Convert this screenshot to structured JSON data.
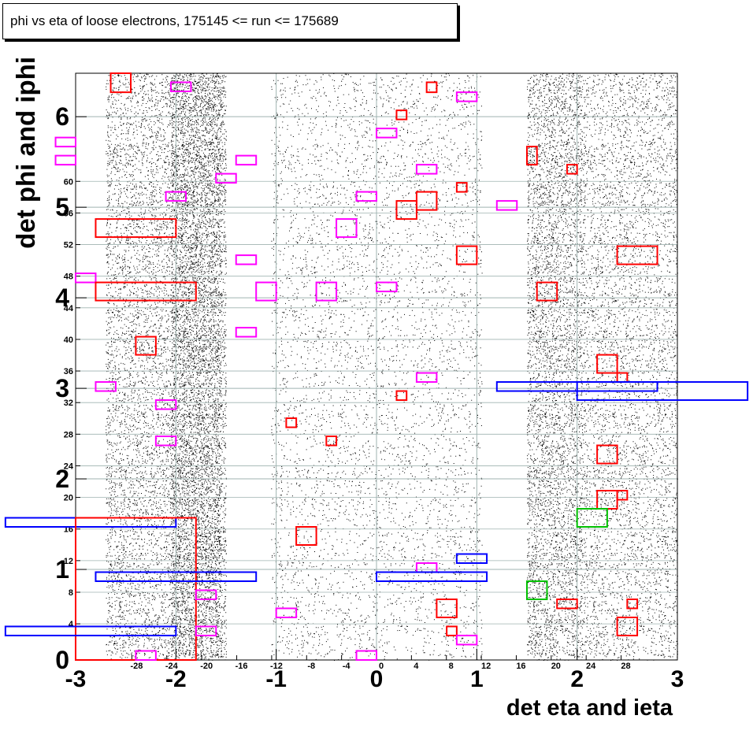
{
  "chart_data": {
    "type": "scatter",
    "title": "phi vs eta of loose electrons, 175145 <= run <= 175689",
    "xlabel": "det eta and ieta",
    "ylabel": "det phi and iphi",
    "xlim": [
      -3.0,
      3.0
    ],
    "ylim": [
      0,
      6.48
    ],
    "x_major_ticks": [
      -3,
      -2,
      -1,
      0,
      1,
      2,
      3
    ],
    "y_major_ticks": [
      0,
      1,
      2,
      3,
      4,
      5,
      6
    ],
    "ieta_ticks": [
      -28,
      -24,
      -20,
      -16,
      -12,
      -8,
      -4,
      0,
      4,
      8,
      12,
      16,
      20,
      24,
      28
    ],
    "iphi_ticks": [
      4,
      8,
      12,
      16,
      20,
      24,
      28,
      32,
      36,
      40,
      44,
      48,
      52,
      56,
      60
    ],
    "grid": true,
    "density_bands": [
      {
        "eta_from": -2.7,
        "eta_to": -1.55,
        "density": "medium"
      },
      {
        "eta_from": -2.05,
        "eta_to": -1.5,
        "density": "high"
      },
      {
        "eta_from": -1.05,
        "eta_to": 1.05,
        "density": "high"
      },
      {
        "eta_from": 1.5,
        "eta_to": 2.05,
        "density": "high"
      },
      {
        "eta_from": 2.05,
        "eta_to": 3.0,
        "density": "medium"
      }
    ],
    "boxes": [
      {
        "color": "#ff0000",
        "x0": -2.65,
        "x1": -2.45,
        "y0": 6.27,
        "y1": 6.48
      },
      {
        "color": "#ff00ff",
        "x0": -2.05,
        "x1": -1.85,
        "y0": 6.28,
        "y1": 6.38
      },
      {
        "color": "#ff0000",
        "x0": 0.5,
        "x1": 0.6,
        "y0": 6.27,
        "y1": 6.38
      },
      {
        "color": "#ff00ff",
        "x0": 0.8,
        "x1": 1.0,
        "y0": 6.17,
        "y1": 6.27
      },
      {
        "color": "#ff0000",
        "x0": 0.2,
        "x1": 0.3,
        "y0": 5.97,
        "y1": 6.07
      },
      {
        "color": "#ff00ff",
        "x0": 0.0,
        "x1": 0.2,
        "y0": 5.77,
        "y1": 5.87
      },
      {
        "color": "#ff00ff",
        "x0": -3.2,
        "x1": -3.0,
        "y0": 5.67,
        "y1": 5.77
      },
      {
        "color": "#ff00ff",
        "x0": -3.2,
        "x1": -3.0,
        "y0": 5.47,
        "y1": 5.57
      },
      {
        "color": "#ff0000",
        "x0": 1.5,
        "x1": 1.6,
        "y0": 5.47,
        "y1": 5.67
      },
      {
        "color": "#ff00ff",
        "x0": -1.4,
        "x1": -1.2,
        "y0": 5.47,
        "y1": 5.57
      },
      {
        "color": "#ff00ff",
        "x0": 0.4,
        "x1": 0.6,
        "y0": 5.37,
        "y1": 5.47
      },
      {
        "color": "#ff0000",
        "x0": 1.9,
        "x1": 2.0,
        "y0": 5.37,
        "y1": 5.47
      },
      {
        "color": "#ff00ff",
        "x0": -1.6,
        "x1": -1.4,
        "y0": 5.27,
        "y1": 5.37
      },
      {
        "color": "#ff0000",
        "x0": 0.8,
        "x1": 0.9,
        "y0": 5.17,
        "y1": 5.27
      },
      {
        "color": "#ff0000",
        "x0": 0.4,
        "x1": 0.6,
        "y0": 4.97,
        "y1": 5.17
      },
      {
        "color": "#ff00ff",
        "x0": -2.1,
        "x1": -1.9,
        "y0": 5.07,
        "y1": 5.17
      },
      {
        "color": "#ff00ff",
        "x0": -0.2,
        "x1": 0.0,
        "y0": 5.07,
        "y1": 5.17
      },
      {
        "color": "#ff00ff",
        "x0": 1.2,
        "x1": 1.4,
        "y0": 4.97,
        "y1": 5.07
      },
      {
        "color": "#ff0000",
        "x0": 0.2,
        "x1": 0.4,
        "y0": 4.87,
        "y1": 5.07
      },
      {
        "color": "#ff0000",
        "x0": -2.8,
        "x1": -2.0,
        "y0": 4.67,
        "y1": 4.87
      },
      {
        "color": "#ff00ff",
        "x0": -0.4,
        "x1": -0.2,
        "y0": 4.67,
        "y1": 4.87
      },
      {
        "color": "#ff0000",
        "x0": 0.8,
        "x1": 1.0,
        "y0": 4.37,
        "y1": 4.57
      },
      {
        "color": "#ff0000",
        "x0": 2.4,
        "x1": 2.8,
        "y0": 4.37,
        "y1": 4.57
      },
      {
        "color": "#ff00ff",
        "x0": -1.4,
        "x1": -1.2,
        "y0": 4.37,
        "y1": 4.47
      },
      {
        "color": "#ff00ff",
        "x0": -3.0,
        "x1": -2.8,
        "y0": 4.17,
        "y1": 4.27
      },
      {
        "color": "#ff0000",
        "x0": -2.8,
        "x1": -1.8,
        "y0": 3.97,
        "y1": 4.17
      },
      {
        "color": "#ff00ff",
        "x0": -1.2,
        "x1": -1.0,
        "y0": 3.97,
        "y1": 4.17
      },
      {
        "color": "#ff00ff",
        "x0": -0.6,
        "x1": -0.4,
        "y0": 3.97,
        "y1": 4.17
      },
      {
        "color": "#ff00ff",
        "x0": 0.0,
        "x1": 0.2,
        "y0": 4.07,
        "y1": 4.17
      },
      {
        "color": "#ff0000",
        "x0": 1.6,
        "x1": 1.8,
        "y0": 3.97,
        "y1": 4.17
      },
      {
        "color": "#ff00ff",
        "x0": -1.4,
        "x1": -1.2,
        "y0": 3.57,
        "y1": 3.67
      },
      {
        "color": "#ff0000",
        "x0": -2.4,
        "x1": -2.2,
        "y0": 3.37,
        "y1": 3.57
      },
      {
        "color": "#ff0000",
        "x0": 2.2,
        "x1": 2.4,
        "y0": 3.17,
        "y1": 3.37
      },
      {
        "color": "#ff00ff",
        "x0": 0.4,
        "x1": 0.6,
        "y0": 3.07,
        "y1": 3.17
      },
      {
        "color": "#ff0000",
        "x0": 2.4,
        "x1": 2.5,
        "y0": 3.07,
        "y1": 3.17
      },
      {
        "color": "#ff00ff",
        "x0": -2.8,
        "x1": -2.6,
        "y0": 2.97,
        "y1": 3.07
      },
      {
        "color": "#0000ff",
        "x0": 1.2,
        "x1": 2.8,
        "y0": 2.97,
        "y1": 3.07
      },
      {
        "color": "#0000ff",
        "x0": 2.0,
        "x1": 3.7,
        "y0": 2.87,
        "y1": 3.07
      },
      {
        "color": "#ff0000",
        "x0": 0.2,
        "x1": 0.3,
        "y0": 2.87,
        "y1": 2.97
      },
      {
        "color": "#ff00ff",
        "x0": -2.2,
        "x1": -2.0,
        "y0": 2.77,
        "y1": 2.87
      },
      {
        "color": "#ff0000",
        "x0": -0.9,
        "x1": -0.8,
        "y0": 2.57,
        "y1": 2.67
      },
      {
        "color": "#ff0000",
        "x0": -0.5,
        "x1": -0.4,
        "y0": 2.37,
        "y1": 2.47
      },
      {
        "color": "#ff00ff",
        "x0": -2.2,
        "x1": -2.0,
        "y0": 2.37,
        "y1": 2.47
      },
      {
        "color": "#ff0000",
        "x0": 2.2,
        "x1": 2.4,
        "y0": 2.17,
        "y1": 2.37
      },
      {
        "color": "#ff0000",
        "x0": 2.2,
        "x1": 2.4,
        "y0": 1.67,
        "y1": 1.87
      },
      {
        "color": "#ff0000",
        "x0": 2.4,
        "x1": 2.5,
        "y0": 1.77,
        "y1": 1.87
      },
      {
        "color": "#00c000",
        "x0": 2.0,
        "x1": 2.3,
        "y0": 1.47,
        "y1": 1.67
      },
      {
        "color": "#0000ff",
        "x0": -3.7,
        "x1": -2.0,
        "y0": 1.47,
        "y1": 1.57
      },
      {
        "color": "#ff0000",
        "x0": -3.0,
        "x1": -1.8,
        "y0": 0.0,
        "y1": 1.57
      },
      {
        "color": "#ff0000",
        "x0": -0.8,
        "x1": -0.6,
        "y0": 1.27,
        "y1": 1.47
      },
      {
        "color": "#0000ff",
        "x0": 0.8,
        "x1": 1.1,
        "y0": 1.07,
        "y1": 1.17
      },
      {
        "color": "#ff00ff",
        "x0": 0.4,
        "x1": 0.6,
        "y0": 0.97,
        "y1": 1.07
      },
      {
        "color": "#0000ff",
        "x0": -2.8,
        "x1": -1.2,
        "y0": 0.87,
        "y1": 0.97
      },
      {
        "color": "#0000ff",
        "x0": 0.0,
        "x1": 1.1,
        "y0": 0.87,
        "y1": 0.97
      },
      {
        "color": "#00c000",
        "x0": 1.5,
        "x1": 1.7,
        "y0": 0.67,
        "y1": 0.87
      },
      {
        "color": "#ff00ff",
        "x0": -1.8,
        "x1": -1.6,
        "y0": 0.67,
        "y1": 0.77
      },
      {
        "color": "#ff0000",
        "x0": 1.8,
        "x1": 2.0,
        "y0": 0.57,
        "y1": 0.67
      },
      {
        "color": "#ff0000",
        "x0": 2.5,
        "x1": 2.6,
        "y0": 0.57,
        "y1": 0.67
      },
      {
        "color": "#ff0000",
        "x0": 0.6,
        "x1": 0.8,
        "y0": 0.47,
        "y1": 0.67
      },
      {
        "color": "#ff00ff",
        "x0": -1.0,
        "x1": -0.8,
        "y0": 0.47,
        "y1": 0.57
      },
      {
        "color": "#0000ff",
        "x0": -3.7,
        "x1": -2.0,
        "y0": 0.27,
        "y1": 0.37
      },
      {
        "color": "#ff00ff",
        "x0": -1.8,
        "x1": -1.6,
        "y0": 0.27,
        "y1": 0.37
      },
      {
        "color": "#ff0000",
        "x0": 0.7,
        "x1": 0.8,
        "y0": 0.27,
        "y1": 0.37
      },
      {
        "color": "#ff0000",
        "x0": 2.4,
        "x1": 2.6,
        "y0": 0.27,
        "y1": 0.47
      },
      {
        "color": "#ff00ff",
        "x0": 0.8,
        "x1": 1.0,
        "y0": 0.17,
        "y1": 0.27
      },
      {
        "color": "#ff00ff",
        "x0": -2.4,
        "x1": -2.2,
        "y0": 0.0,
        "y1": 0.1
      },
      {
        "color": "#ff00ff",
        "x0": -0.2,
        "x1": 0.0,
        "y0": 0.0,
        "y1": 0.1
      }
    ]
  }
}
